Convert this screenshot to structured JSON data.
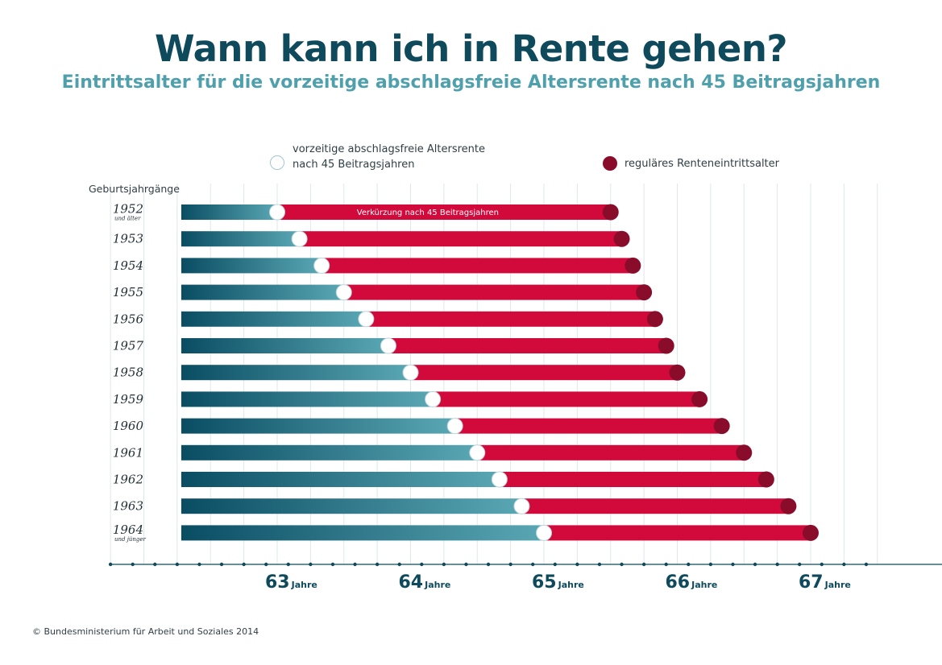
{
  "header": {
    "title": "Wann kann ich in Rente gehen?",
    "subtitle": "Eintrittsalter für die vorzeitige abschlagsfreie Altersrente nach 45 Beitragsjahren"
  },
  "legend": {
    "early_line1": "vorzeitige abschlagsfreie Altersrente",
    "early_line2": "nach 45 Beitragsjahren",
    "regular": "reguläres Renteneintrittsalter"
  },
  "footer": "© Bundesministerium für Arbeit und Soziales 2014",
  "colors": {
    "bar_teal_dark": "#0a4d63",
    "bar_teal_light": "#5aa7b4",
    "bar_red": "#d20a3c",
    "dot_regular": "#8a0c2b",
    "dot_early": "#ffffff",
    "axis": "#0e4a5c"
  },
  "chart_data": {
    "type": "bar",
    "ylabel": "Geburtsjahrgänge",
    "xlabel": "",
    "axis_unit": "Jahre",
    "xlim": [
      61.75,
      67.75
    ],
    "major_ticks": [
      63,
      64,
      65,
      66,
      67
    ],
    "annotation": "Verkürzung nach 45 Beitragsjahren",
    "categories": [
      "1952",
      "1953",
      "1954",
      "1955",
      "1956",
      "1957",
      "1958",
      "1959",
      "1960",
      "1961",
      "1962",
      "1963",
      "1964"
    ],
    "category_notes": {
      "1952": "und älter",
      "1964": "und jünger"
    },
    "series": [
      {
        "name": "vorzeitige abschlagsfreie Altersrente nach 45 Beitragsjahren",
        "values": [
          63.0,
          63.1667,
          63.3333,
          63.5,
          63.6667,
          63.8333,
          64.0,
          64.1667,
          64.3333,
          64.5,
          64.6667,
          64.8333,
          65.0
        ]
      },
      {
        "name": "reguläres Renteneintrittsalter",
        "values": [
          65.5,
          65.5833,
          65.6667,
          65.75,
          65.8333,
          65.9167,
          66.0,
          66.1667,
          66.3333,
          66.5,
          66.6667,
          66.8333,
          67.0
        ]
      }
    ]
  }
}
